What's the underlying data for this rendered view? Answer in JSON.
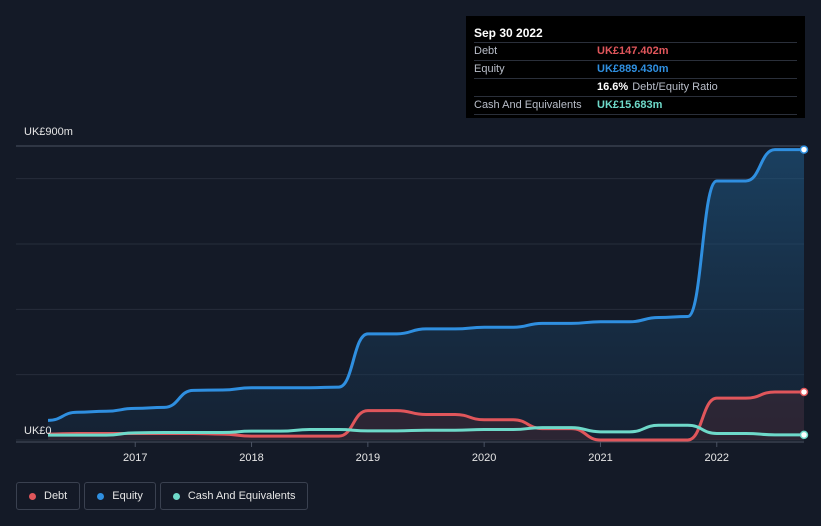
{
  "colors": {
    "background": "#141a27",
    "debt": "#e0565b",
    "equity": "#2f8fe0",
    "cash": "#6ed9c9",
    "grid": "#2a3040"
  },
  "tooltip": {
    "date": "Sep 30 2022",
    "debt_label": "Debt",
    "debt_value": "UK£147.402m",
    "equity_label": "Equity",
    "equity_value": "UK£889.430m",
    "ratio_value": "16.6%",
    "ratio_label": "Debt/Equity Ratio",
    "cash_label": "Cash And Equivalents",
    "cash_value": "UK£15.683m"
  },
  "legend": [
    {
      "label": "Debt",
      "color": "#e0565b"
    },
    {
      "label": "Equity",
      "color": "#2f8fe0"
    },
    {
      "label": "Cash And Equivalents",
      "color": "#6ed9c9"
    }
  ],
  "chart_data": {
    "type": "line",
    "y_top_label": "UK£900m",
    "y_bottom_label": "UK£0",
    "ylim": [
      0,
      900
    ],
    "xlim": [
      2016.25,
      2022.75
    ],
    "x_ticks": [
      "2017",
      "2018",
      "2019",
      "2020",
      "2021",
      "2022"
    ],
    "x_tick_values": [
      2017,
      2018,
      2019,
      2020,
      2021,
      2022
    ],
    "grid": true,
    "legend_position": "bottom-left",
    "series": [
      {
        "name": "Equity",
        "x": [
          2016.25,
          2016.5,
          2016.75,
          2017.0,
          2017.25,
          2017.5,
          2017.75,
          2018.0,
          2018.25,
          2018.5,
          2018.75,
          2019.0,
          2019.25,
          2019.5,
          2019.75,
          2020.0,
          2020.25,
          2020.5,
          2020.75,
          2021.0,
          2021.25,
          2021.5,
          2021.75,
          2022.0,
          2022.25,
          2022.5,
          2022.75
        ],
        "values": [
          60,
          85,
          88,
          97,
          100,
          152,
          153,
          160,
          160,
          160,
          162,
          325,
          325,
          340,
          340,
          345,
          345,
          357,
          357,
          362,
          362,
          375,
          378,
          793,
          793,
          889,
          889
        ]
      },
      {
        "name": "Debt",
        "x": [
          2016.25,
          2016.5,
          2016.75,
          2017.0,
          2017.25,
          2017.5,
          2017.75,
          2018.0,
          2018.25,
          2018.5,
          2018.75,
          2019.0,
          2019.25,
          2019.5,
          2019.75,
          2020.0,
          2020.25,
          2020.5,
          2020.75,
          2021.0,
          2021.25,
          2021.5,
          2021.75,
          2022.0,
          2022.25,
          2022.5,
          2022.75
        ],
        "values": [
          18,
          20,
          20,
          20,
          20,
          20,
          18,
          12,
          12,
          12,
          12,
          90,
          90,
          78,
          78,
          62,
          62,
          35,
          35,
          0,
          0,
          0,
          0,
          128,
          128,
          147,
          147
        ]
      },
      {
        "name": "Cash And Equivalents",
        "x": [
          2016.25,
          2016.5,
          2016.75,
          2017.0,
          2017.25,
          2017.5,
          2017.75,
          2018.0,
          2018.25,
          2018.5,
          2018.75,
          2019.0,
          2019.25,
          2019.5,
          2019.75,
          2020.0,
          2020.25,
          2020.5,
          2020.75,
          2021.0,
          2021.25,
          2021.5,
          2021.75,
          2022.0,
          2022.25,
          2022.5,
          2022.75
        ],
        "values": [
          15,
          15,
          15,
          22,
          23,
          23,
          23,
          27,
          27,
          32,
          32,
          28,
          28,
          30,
          30,
          32,
          32,
          38,
          38,
          25,
          25,
          45,
          45,
          20,
          20,
          15.7,
          15.7
        ]
      }
    ]
  }
}
